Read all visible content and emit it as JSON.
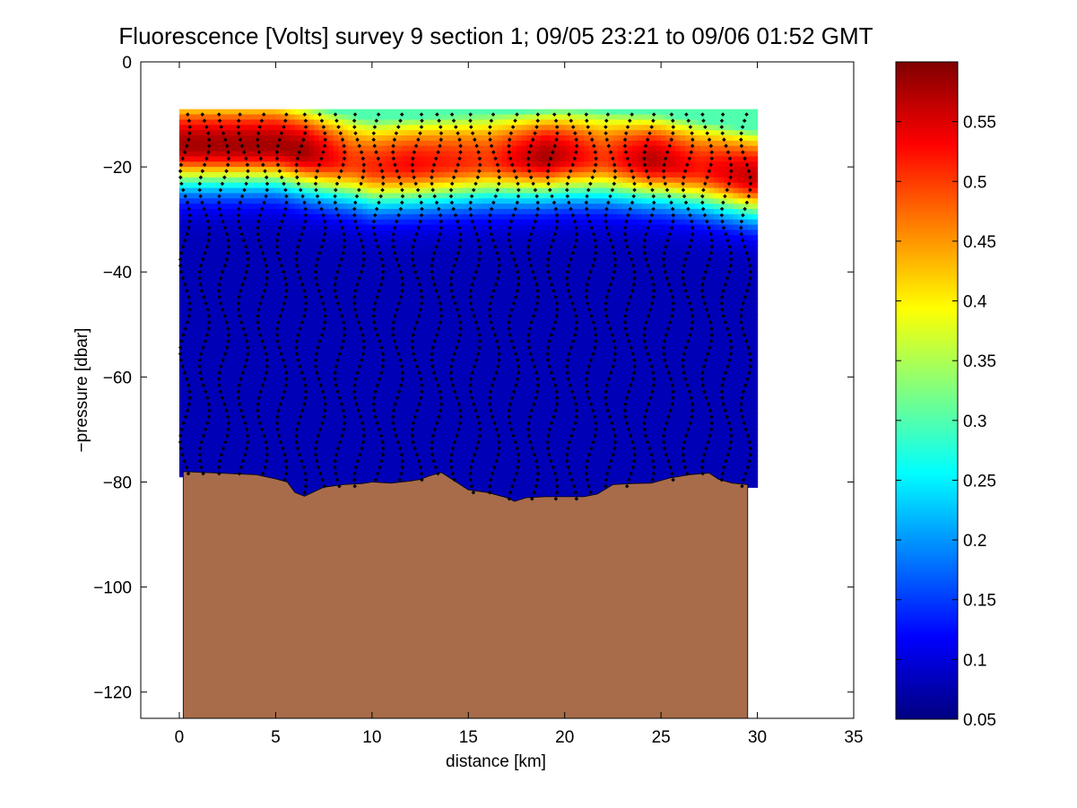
{
  "chart_data": {
    "type": "heatmap",
    "title": "Fluorescence [Volts] survey 9 section 1; 09/05 23:21 to 09/06 01:52 GMT",
    "xlabel": "distance [km]",
    "ylabel": "−pressure [dbar]",
    "xlim": [
      -2,
      35
    ],
    "ylim": [
      -125,
      0
    ],
    "xticks": [
      0,
      5,
      10,
      15,
      20,
      25,
      30,
      35
    ],
    "xtick_labels": [
      "0",
      "5",
      "10",
      "15",
      "20",
      "25",
      "30",
      "35"
    ],
    "yticks": [
      0,
      -20,
      -40,
      -60,
      -80,
      -100,
      -120
    ],
    "ytick_labels": [
      "0",
      "−20",
      "−40",
      "−60",
      "−80",
      "−100",
      "−120"
    ],
    "colorbar": {
      "colormap": "jet",
      "range": [
        0.05,
        0.6
      ],
      "ticks": [
        0.05,
        0.1,
        0.15,
        0.2,
        0.25,
        0.3,
        0.35,
        0.4,
        0.45,
        0.5,
        0.55
      ],
      "tick_labels": [
        "0.05",
        "0.1",
        "0.15",
        "0.2",
        "0.25",
        "0.3",
        "0.35",
        "0.4",
        "0.45",
        "0.5",
        "0.55"
      ]
    },
    "field": {
      "x_extent": [
        0,
        29.8
      ],
      "surface_depth": -9,
      "chlorophyll_max_depth": [
        {
          "x": 0,
          "z": -16
        },
        {
          "x": 5,
          "z": -16
        },
        {
          "x": 10,
          "z": -20
        },
        {
          "x": 15,
          "z": -19
        },
        {
          "x": 20,
          "z": -18
        },
        {
          "x": 25,
          "z": -19
        },
        {
          "x": 29.8,
          "z": -22
        }
      ],
      "max_value": [
        {
          "x": 0,
          "v": 0.58
        },
        {
          "x": 3,
          "v": 0.58
        },
        {
          "x": 6.5,
          "v": 0.58
        },
        {
          "x": 9,
          "v": 0.5
        },
        {
          "x": 12,
          "v": 0.53
        },
        {
          "x": 16,
          "v": 0.5
        },
        {
          "x": 19,
          "v": 0.58
        },
        {
          "x": 22,
          "v": 0.5
        },
        {
          "x": 24.5,
          "v": 0.57
        },
        {
          "x": 27,
          "v": 0.52
        },
        {
          "x": 29.5,
          "v": 0.56
        }
      ],
      "deep_value": 0.08
    },
    "profiles": {
      "count": 30,
      "x_start": 0.3,
      "x_end": 29.4,
      "top_depth": -10,
      "point_spacing_dbar": 1.2
    },
    "seafloor": {
      "color": "#a86c4a",
      "x_range": [
        0.2,
        29.5
      ],
      "depth": [
        {
          "x": 0.2,
          "z": -78
        },
        {
          "x": 2,
          "z": -78.3
        },
        {
          "x": 4,
          "z": -78.6
        },
        {
          "x": 5,
          "z": -79.4
        },
        {
          "x": 5.6,
          "z": -80
        },
        {
          "x": 6,
          "z": -82
        },
        {
          "x": 6.5,
          "z": -82.7
        },
        {
          "x": 7.5,
          "z": -81
        },
        {
          "x": 8.5,
          "z": -80.5
        },
        {
          "x": 9.5,
          "z": -80.3
        },
        {
          "x": 10,
          "z": -80
        },
        {
          "x": 11,
          "z": -80.2
        },
        {
          "x": 12,
          "z": -79.8
        },
        {
          "x": 12.5,
          "z": -79.5
        },
        {
          "x": 13,
          "z": -78.8
        },
        {
          "x": 13.6,
          "z": -78.2
        },
        {
          "x": 14.2,
          "z": -79.6
        },
        {
          "x": 15,
          "z": -81.5
        },
        {
          "x": 16,
          "z": -82
        },
        {
          "x": 17,
          "z": -83
        },
        {
          "x": 17.4,
          "z": -83.7
        },
        {
          "x": 18,
          "z": -83
        },
        {
          "x": 19,
          "z": -82.8
        },
        {
          "x": 20,
          "z": -82.8
        },
        {
          "x": 21,
          "z": -82.8
        },
        {
          "x": 21.7,
          "z": -82.3
        },
        {
          "x": 22.5,
          "z": -80.5
        },
        {
          "x": 23.5,
          "z": -80.3
        },
        {
          "x": 24.5,
          "z": -80.2
        },
        {
          "x": 25.5,
          "z": -79.2
        },
        {
          "x": 26.5,
          "z": -78.6
        },
        {
          "x": 27.5,
          "z": -78.3
        },
        {
          "x": 28,
          "z": -79.5
        },
        {
          "x": 28.7,
          "z": -80.2
        },
        {
          "x": 29.5,
          "z": -80.5
        }
      ]
    }
  }
}
